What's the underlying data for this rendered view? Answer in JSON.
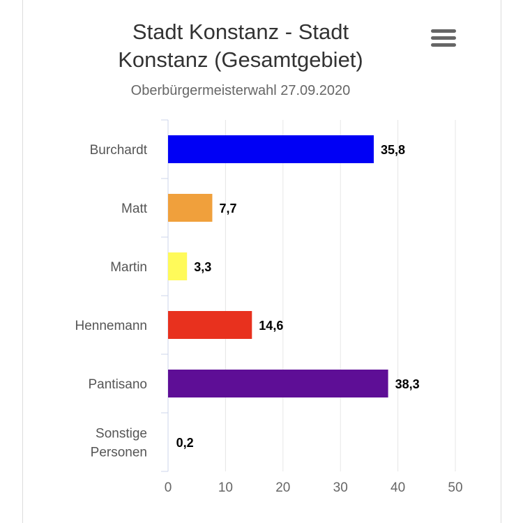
{
  "chart_data": {
    "type": "bar",
    "orientation": "horizontal",
    "title": "Stadt Konstanz - Stadt Konstanz (Gesamtgebiet)",
    "subtitle": "Oberbürgermeisterwahl 27.09.2020",
    "categories": [
      "Burchardt",
      "Matt",
      "Martin",
      "Hennemann",
      "Pantisano",
      "Sonstige Personen"
    ],
    "values": [
      35.8,
      7.7,
      3.3,
      14.6,
      38.3,
      0.2
    ],
    "data_labels": [
      "35,8",
      "7,7",
      "3,3",
      "14,6",
      "38,3",
      "0,2"
    ],
    "colors": [
      "#0000f5",
      "#f0a03c",
      "#fffa5a",
      "#e8311e",
      "#5e0e96",
      "#999999"
    ],
    "xticks": [
      "0",
      "10",
      "20",
      "30",
      "40",
      "50"
    ],
    "xlim": [
      0,
      50
    ],
    "xlabel": "",
    "ylabel": "",
    "grid": true,
    "legend": "none"
  },
  "menu": {
    "icon": "hamburger-menu-icon"
  }
}
